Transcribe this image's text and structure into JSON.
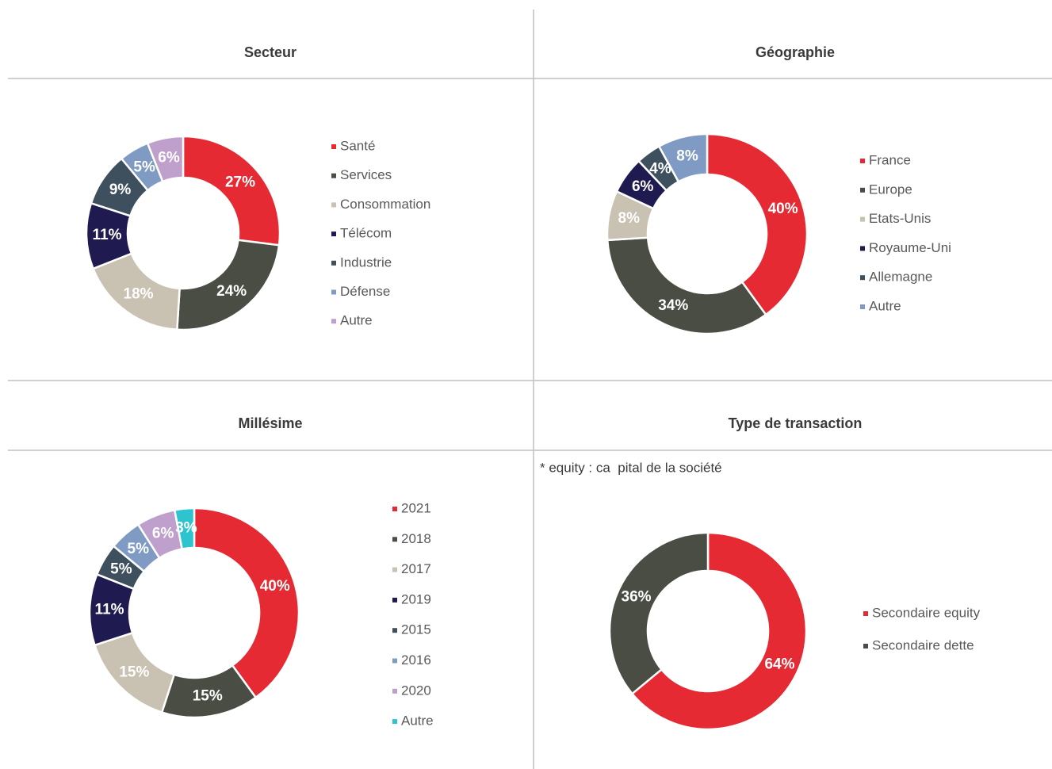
{
  "chart_data": [
    {
      "type": "pie",
      "title": "Secteur",
      "categories": [
        "Santé",
        "Services",
        "Consommation",
        "Télécom",
        "Industrie",
        "Défense",
        "Autre"
      ],
      "values": [
        27,
        24,
        18,
        11,
        9,
        5,
        6
      ],
      "value_labels": [
        "27%",
        "24%",
        "18%",
        "11%",
        "9%",
        "5%",
        "6%"
      ],
      "colors": [
        "#e52a33",
        "#4a4d43",
        "#c9c2b2",
        "#1f1a4f",
        "#3e4f5e",
        "#7f9bc4",
        "#bf9fcb"
      ]
    },
    {
      "type": "pie",
      "title": "Géographie",
      "categories": [
        "France",
        "Europe",
        "Etats-Unis",
        "Royaume-Uni",
        "Allemagne",
        "Autre"
      ],
      "values": [
        40,
        34,
        8,
        6,
        4,
        8
      ],
      "value_labels": [
        "40%",
        "34%",
        "8%",
        "6%",
        "4%",
        "8%"
      ],
      "colors": [
        "#e52a33",
        "#4a4d43",
        "#c9c2b2",
        "#1f1a4f",
        "#3e4f5e",
        "#7f9bc4"
      ]
    },
    {
      "type": "pie",
      "title": "Millésime",
      "categories": [
        "2021",
        "2018",
        "2017",
        "2019",
        "2015",
        "2016",
        "2020",
        "Autre"
      ],
      "values": [
        40,
        15,
        15,
        11,
        5,
        5,
        6,
        3
      ],
      "value_labels": [
        "40%",
        "15%",
        "15%",
        "11%",
        "5%",
        "5%",
        "6%",
        "3%"
      ],
      "colors": [
        "#e52a33",
        "#4a4d43",
        "#c9c2b2",
        "#1f1a4f",
        "#3e4f5e",
        "#7f9bc4",
        "#bf9fcb",
        "#2ec4cf"
      ]
    },
    {
      "type": "pie",
      "title": "Type de transaction",
      "annotation": "* equity : ca  pital de la société",
      "categories": [
        "Secondaire equity",
        "Secondaire dette"
      ],
      "values": [
        64,
        36
      ],
      "value_labels": [
        "64%",
        "36%"
      ],
      "colors": [
        "#e52a33",
        "#4a4d43"
      ]
    }
  ]
}
